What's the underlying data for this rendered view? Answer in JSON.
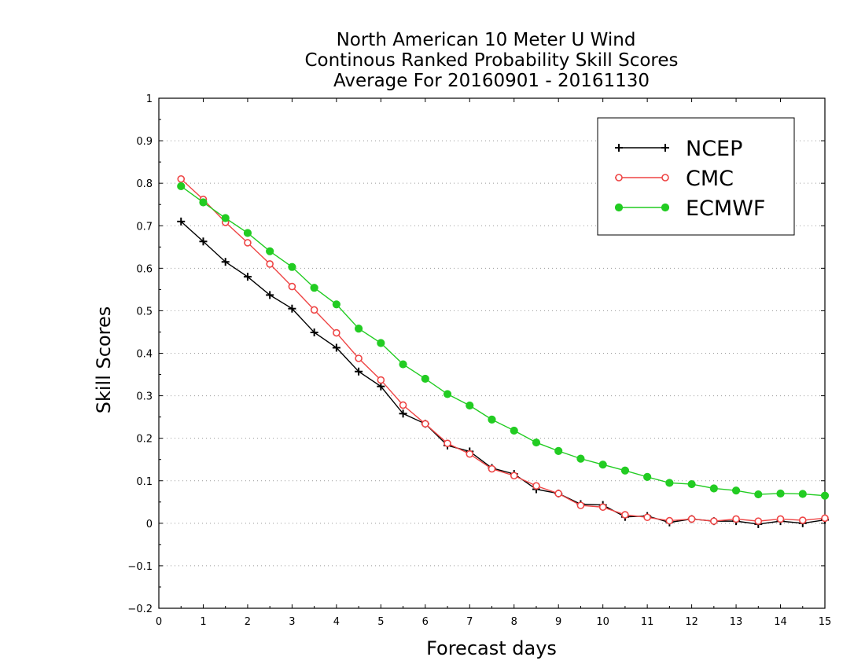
{
  "chart_data": {
    "type": "line",
    "title": [
      "North American 10 Meter U Wind",
      "Continous Ranked Probability Skill Scores",
      "Average For 20160901 - 20161130"
    ],
    "xlabel": "Forecast days",
    "ylabel": "Skill Scores",
    "xlim": [
      0,
      15
    ],
    "ylim": [
      -0.2,
      1
    ],
    "x_ticks": [
      0,
      1,
      2,
      3,
      4,
      5,
      6,
      7,
      8,
      9,
      10,
      11,
      12,
      13,
      14,
      15
    ],
    "x_tick_labels": [
      "0",
      "1",
      "2",
      "3",
      "4",
      "5",
      "6",
      "7",
      "8",
      "9",
      "10",
      "11",
      "12",
      "13",
      "14",
      "15"
    ],
    "y_ticks": [
      -0.2,
      -0.1,
      0,
      0.1,
      0.2,
      0.3,
      0.4,
      0.5,
      0.6,
      0.7,
      0.8,
      0.9,
      1
    ],
    "y_tick_labels": [
      "−0.2",
      "−0.1",
      "0",
      "0.1",
      "0.2",
      "0.3",
      "0.4",
      "0.5",
      "0.6",
      "0.7",
      "0.8",
      "0.9",
      "1"
    ],
    "grid": "horizontal dotted",
    "legend_position": "top-right",
    "x": [
      0.5,
      1,
      1.5,
      2,
      2.5,
      3,
      3.5,
      4,
      4.5,
      5,
      5.5,
      6,
      6.5,
      7,
      7.5,
      8,
      8.5,
      9,
      9.5,
      10,
      10.5,
      11,
      11.5,
      12,
      12.5,
      13,
      13.5,
      14,
      14.5,
      15
    ],
    "series": [
      {
        "name": "NCEP",
        "color": "#000000",
        "marker": "plus",
        "values": [
          0.71,
          0.663,
          0.615,
          0.58,
          0.537,
          0.505,
          0.449,
          0.413,
          0.357,
          0.322,
          0.258,
          0.234,
          0.183,
          0.169,
          0.13,
          0.116,
          0.08,
          0.07,
          0.045,
          0.043,
          0.015,
          0.017,
          0.002,
          0.01,
          0.005,
          0.005,
          -0.002,
          0.005,
          0.0,
          0.008
        ]
      },
      {
        "name": "CMC",
        "color": "#ee4444",
        "marker": "open-circle",
        "values": [
          0.81,
          0.762,
          0.708,
          0.66,
          0.61,
          0.557,
          0.502,
          0.448,
          0.388,
          0.337,
          0.278,
          0.234,
          0.188,
          0.163,
          0.128,
          0.112,
          0.088,
          0.07,
          0.042,
          0.038,
          0.02,
          0.014,
          0.006,
          0.01,
          0.005,
          0.01,
          0.005,
          0.01,
          0.007,
          0.012
        ]
      },
      {
        "name": "ECMWF",
        "color": "#22cc22",
        "marker": "filled-circle",
        "values": [
          0.793,
          0.755,
          0.718,
          0.683,
          0.64,
          0.603,
          0.554,
          0.515,
          0.458,
          0.424,
          0.374,
          0.34,
          0.304,
          0.277,
          0.244,
          0.218,
          0.19,
          0.17,
          0.152,
          0.138,
          0.124,
          0.109,
          0.095,
          0.092,
          0.082,
          0.077,
          0.068,
          0.07,
          0.069,
          0.065
        ]
      }
    ]
  }
}
